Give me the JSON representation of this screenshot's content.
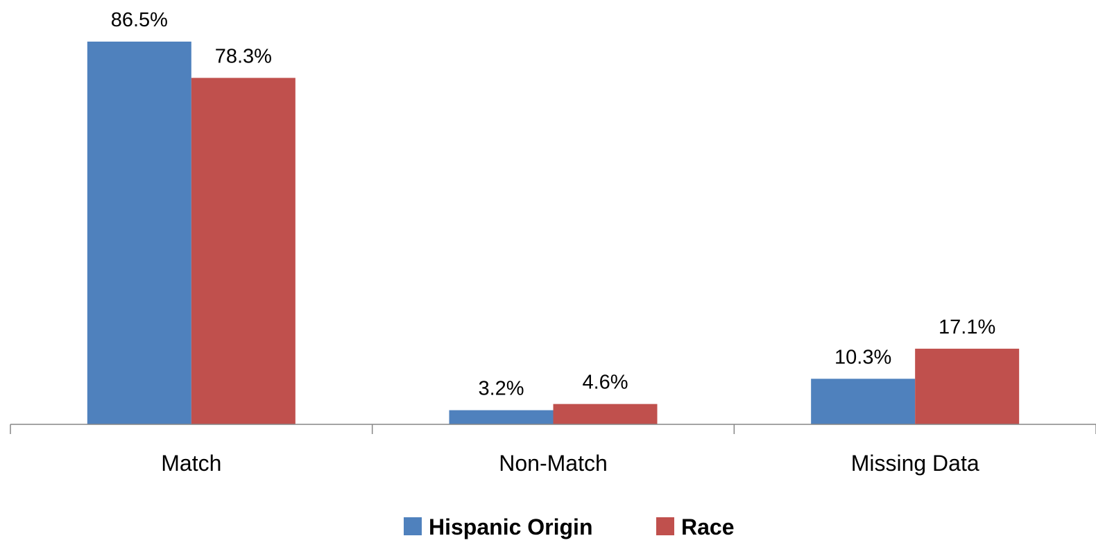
{
  "chart_data": {
    "type": "bar",
    "categories": [
      "Match",
      "Non-Match",
      "Missing Data"
    ],
    "series": [
      {
        "name": "Hispanic Origin",
        "color": "#4F81BD",
        "values": [
          86.5,
          3.2,
          10.3
        ],
        "labels": [
          "86.5%",
          "3.2%",
          "10.3%"
        ]
      },
      {
        "name": "Race",
        "color": "#C0504D",
        "values": [
          78.3,
          4.6,
          17.1
        ],
        "labels": [
          "78.3%",
          "4.6%",
          "17.1%"
        ]
      }
    ],
    "ylim": [
      0,
      100
    ],
    "grid": false,
    "legend_position": "bottom"
  }
}
